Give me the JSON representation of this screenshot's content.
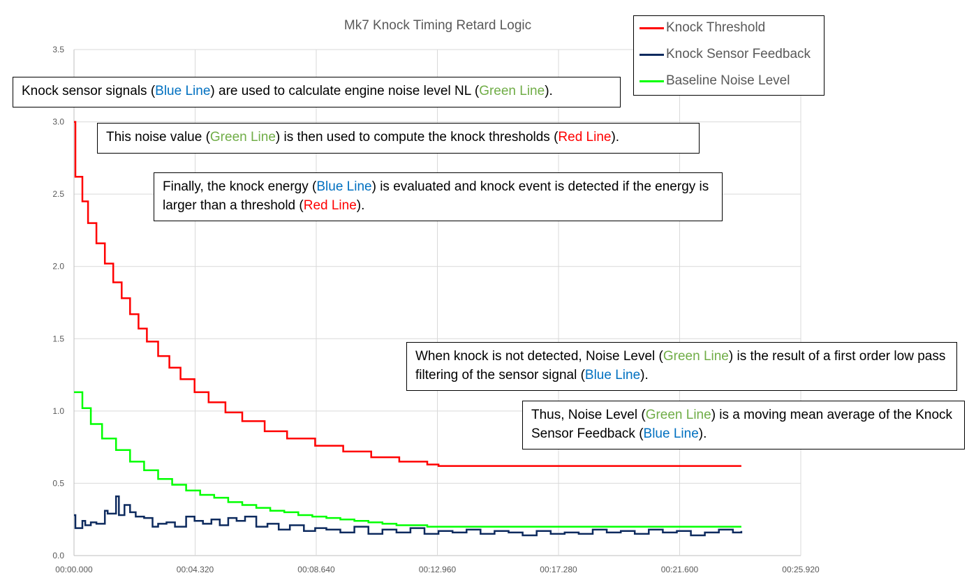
{
  "chart_data": {
    "type": "line",
    "title": "Mk7 Knock Timing Retard Logic",
    "xlabel": "",
    "ylabel": "",
    "x_ticks": [
      "00:00.000",
      "00:04.320",
      "00:08.640",
      "00:12.960",
      "00:17.280",
      "00:21.600",
      "00:25.920"
    ],
    "y_ticks": [
      "0.0",
      "0.5",
      "1.0",
      "1.5",
      "2.0",
      "2.5",
      "3.0",
      "3.5"
    ],
    "xlim": [
      0,
      25.92
    ],
    "ylim": [
      0,
      3.5
    ],
    "x_unit": "seconds",
    "grid": true,
    "legend_position": "top-right",
    "series": [
      {
        "name": "Knock Threshold",
        "color": "#ff0000",
        "x": [
          0,
          0.05,
          0.3,
          0.5,
          0.8,
          1.1,
          1.4,
          1.7,
          2.0,
          2.3,
          2.6,
          3.0,
          3.4,
          3.8,
          4.3,
          4.8,
          5.4,
          6.0,
          6.8,
          7.6,
          8.6,
          9.6,
          10.6,
          11.6,
          12.6,
          13.0,
          14.0,
          16.0,
          18.0,
          20.0,
          22.0,
          23.8
        ],
        "y": [
          3.0,
          2.62,
          2.45,
          2.3,
          2.16,
          2.02,
          1.89,
          1.78,
          1.67,
          1.57,
          1.48,
          1.38,
          1.3,
          1.22,
          1.13,
          1.06,
          0.99,
          0.93,
          0.86,
          0.81,
          0.76,
          0.72,
          0.68,
          0.65,
          0.63,
          0.62,
          0.62,
          0.62,
          0.62,
          0.62,
          0.62,
          0.62
        ]
      },
      {
        "name": "Knock Sensor Feedback",
        "color": "#0d2a5e",
        "x": [
          0,
          0.05,
          0.3,
          0.4,
          0.6,
          0.8,
          1.1,
          1.2,
          1.5,
          1.6,
          1.8,
          2.0,
          2.2,
          2.5,
          2.8,
          3.0,
          3.3,
          3.6,
          4.0,
          4.3,
          4.6,
          4.9,
          5.2,
          5.5,
          5.8,
          6.1,
          6.5,
          6.9,
          7.3,
          7.7,
          8.2,
          8.6,
          9.0,
          9.5,
          10.0,
          10.5,
          11.0,
          11.5,
          12.0,
          12.5,
          13.0,
          13.5,
          14.0,
          14.5,
          15.0,
          15.5,
          16.0,
          16.5,
          17.0,
          17.5,
          18.0,
          18.5,
          19.0,
          19.5,
          20.0,
          20.5,
          21.0,
          21.5,
          22.0,
          22.5,
          23.0,
          23.5,
          23.8
        ],
        "y": [
          0.28,
          0.19,
          0.24,
          0.21,
          0.23,
          0.22,
          0.31,
          0.29,
          0.41,
          0.28,
          0.35,
          0.3,
          0.27,
          0.26,
          0.2,
          0.22,
          0.23,
          0.2,
          0.27,
          0.24,
          0.22,
          0.25,
          0.21,
          0.26,
          0.24,
          0.27,
          0.2,
          0.22,
          0.18,
          0.21,
          0.17,
          0.19,
          0.18,
          0.16,
          0.2,
          0.15,
          0.18,
          0.16,
          0.19,
          0.15,
          0.17,
          0.16,
          0.18,
          0.15,
          0.17,
          0.16,
          0.14,
          0.17,
          0.15,
          0.16,
          0.15,
          0.18,
          0.16,
          0.17,
          0.15,
          0.18,
          0.16,
          0.17,
          0.14,
          0.16,
          0.18,
          0.16,
          0.17
        ]
      },
      {
        "name": "Baseline Noise Level",
        "color": "#00ff00",
        "x": [
          0,
          0.3,
          0.6,
          1.0,
          1.5,
          2.0,
          2.5,
          3.0,
          3.5,
          4.0,
          4.5,
          5.0,
          5.5,
          6.0,
          6.5,
          7.0,
          7.5,
          8.0,
          8.5,
          9.0,
          9.5,
          10.0,
          10.5,
          11.0,
          11.5,
          12.0,
          12.6,
          13.0,
          14.0,
          16.0,
          18.0,
          20.0,
          22.0,
          23.8
        ],
        "y": [
          1.13,
          1.02,
          0.91,
          0.81,
          0.73,
          0.65,
          0.59,
          0.53,
          0.49,
          0.45,
          0.42,
          0.4,
          0.37,
          0.35,
          0.33,
          0.31,
          0.3,
          0.28,
          0.27,
          0.26,
          0.25,
          0.24,
          0.23,
          0.22,
          0.21,
          0.21,
          0.2,
          0.2,
          0.2,
          0.2,
          0.2,
          0.2,
          0.2,
          0.2
        ]
      }
    ]
  },
  "annotations": [
    {
      "segments": [
        {
          "text": "Knock sensor signals (",
          "color": "#000000"
        },
        {
          "text": "Blue Line",
          "color": "#0070c0"
        },
        {
          "text": ") are used to calculate engine noise level NL (",
          "color": "#000000"
        },
        {
          "text": "Green Line",
          "color": "#70ad47"
        },
        {
          "text": ").",
          "color": "#000000"
        }
      ]
    },
    {
      "segments": [
        {
          "text": "This noise value (",
          "color": "#000000"
        },
        {
          "text": "Green Line",
          "color": "#70ad47"
        },
        {
          "text": ") is then used to compute the knock thresholds (",
          "color": "#000000"
        },
        {
          "text": "Red Line",
          "color": "#ff0000"
        },
        {
          "text": ").",
          "color": "#000000"
        }
      ]
    },
    {
      "segments": [
        {
          "text": "Finally, the knock energy (",
          "color": "#000000"
        },
        {
          "text": "Blue Line",
          "color": "#0070c0"
        },
        {
          "text": ") is evaluated and knock event is detected if the energy is larger than a threshold (",
          "color": "#000000"
        },
        {
          "text": "Red Line",
          "color": "#ff0000"
        },
        {
          "text": ").",
          "color": "#000000"
        }
      ]
    },
    {
      "segments": [
        {
          "text": "When knock is not detected, Noise Level (",
          "color": "#000000"
        },
        {
          "text": "Green Line",
          "color": "#70ad47"
        },
        {
          "text": ") is the result of a first order low pass filtering of the sensor signal (",
          "color": "#000000"
        },
        {
          "text": "Blue Line",
          "color": "#0070c0"
        },
        {
          "text": ").",
          "color": "#000000"
        }
      ]
    },
    {
      "segments": [
        {
          "text": "Thus, Noise Level (",
          "color": "#000000"
        },
        {
          "text": "Green Line",
          "color": "#70ad47"
        },
        {
          "text": ") is a moving mean average of the Knock Sensor Feedback (",
          "color": "#000000"
        },
        {
          "text": "Blue Line",
          "color": "#0070c0"
        },
        {
          "text": ").",
          "color": "#000000"
        }
      ]
    }
  ]
}
